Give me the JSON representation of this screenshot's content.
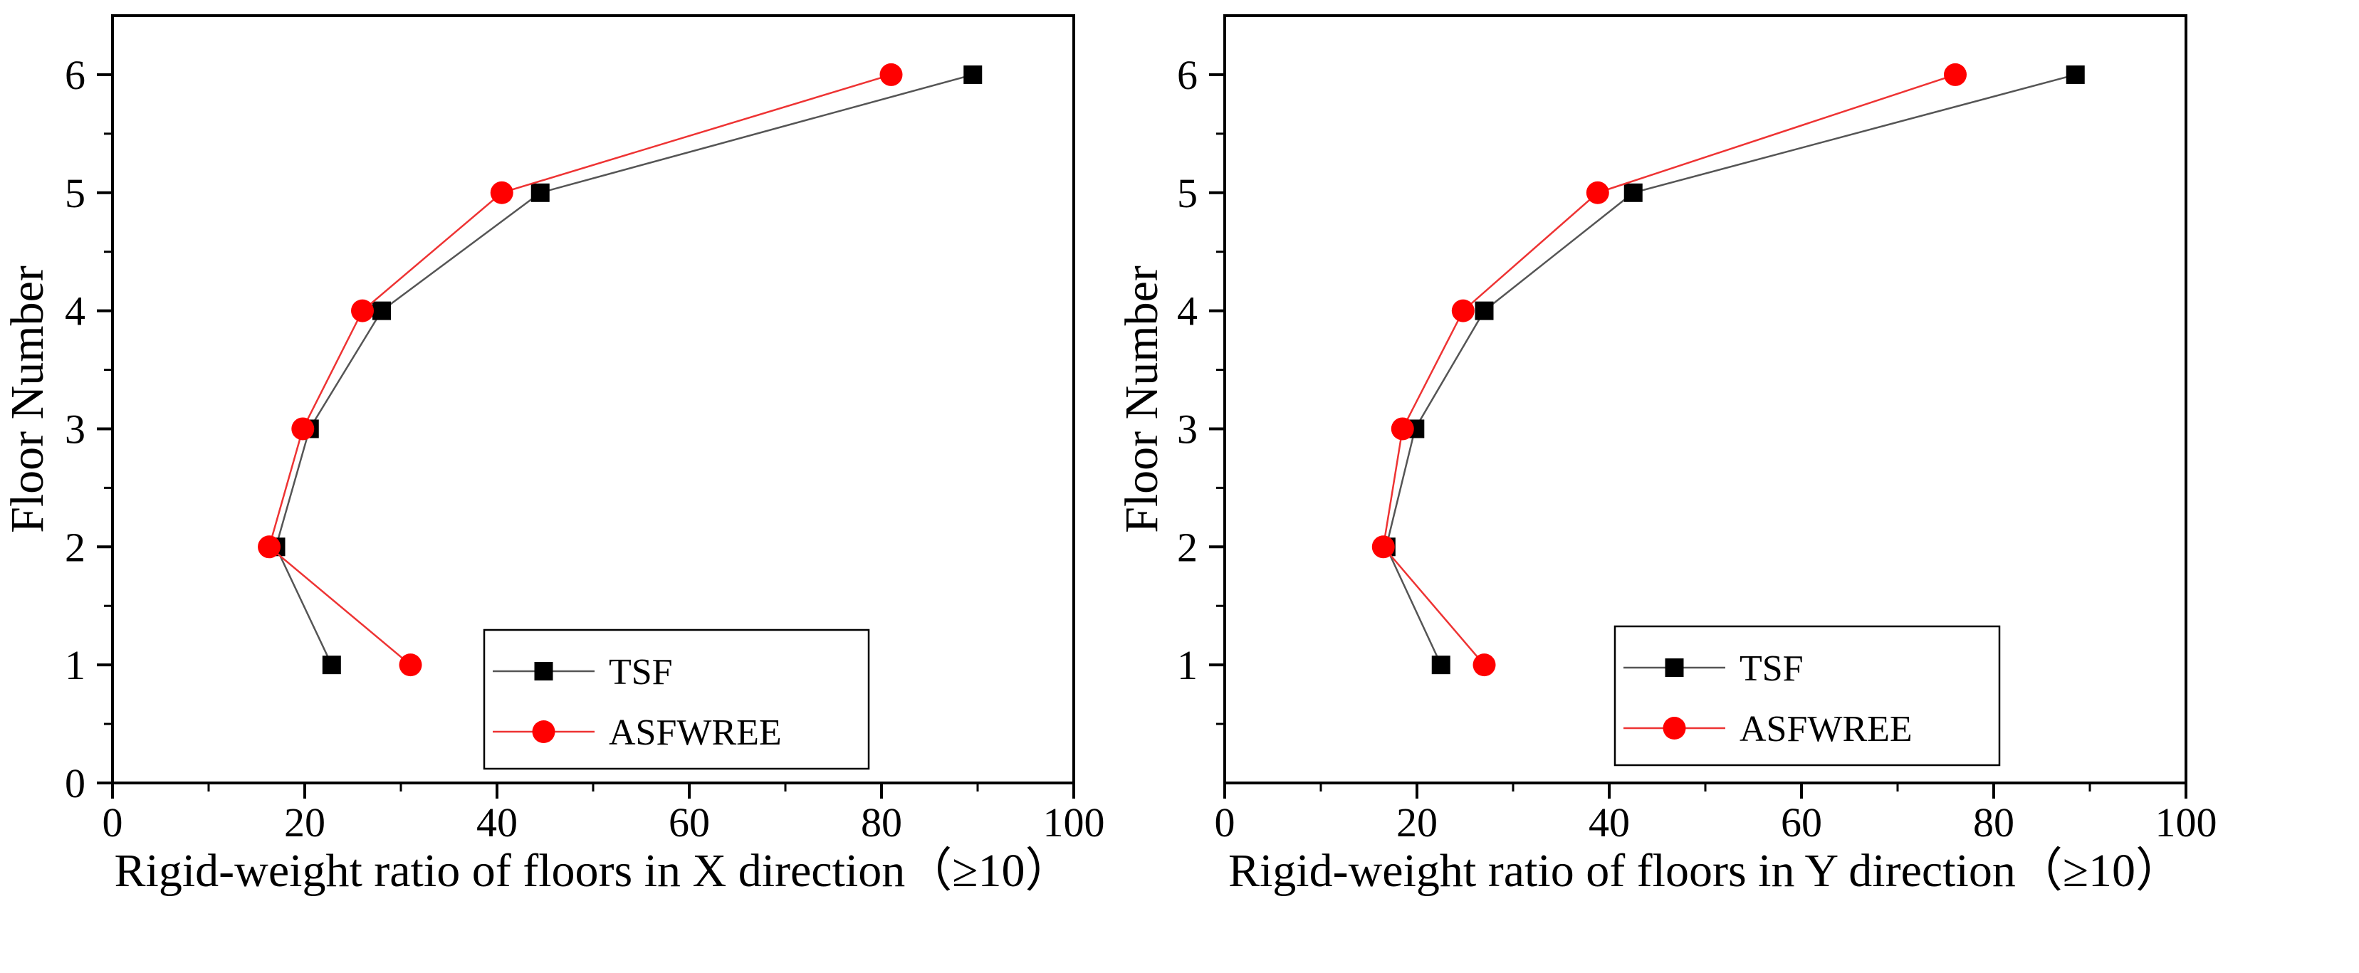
{
  "chart_data": [
    {
      "type": "line",
      "xlabel": "Rigid-weight ratio of floors in X direction（≥10）",
      "ylabel": "Floor Number",
      "xlim": [
        0,
        100
      ],
      "ylim": [
        0,
        6.5
      ],
      "xticks": [
        "0",
        "20",
        "40",
        "60",
        "80",
        "100"
      ],
      "yticks": [
        "0",
        "1",
        "2",
        "3",
        "4",
        "5",
        "6"
      ],
      "grid": false,
      "legend_position": "bottom-right",
      "series": [
        {
          "name": "TSF",
          "color": "#000000",
          "marker": "square",
          "line_color": "#555555",
          "x": [
            22.8,
            17.0,
            20.5,
            28.0,
            44.5,
            89.5
          ],
          "y": [
            1,
            2,
            3,
            4,
            5,
            6
          ]
        },
        {
          "name": "ASFWREE",
          "color": "#ff0000",
          "marker": "circle",
          "line_color": "#ee3333",
          "x": [
            31.0,
            16.3,
            19.8,
            26.0,
            40.5,
            81.0
          ],
          "y": [
            1,
            2,
            3,
            4,
            5,
            6
          ]
        }
      ]
    },
    {
      "type": "line",
      "xlabel": "Rigid-weight ratio of floors in Y direction（≥10）",
      "ylabel": "Floor Number",
      "xlim": [
        0,
        100
      ],
      "ylim": [
        0,
        6.5
      ],
      "xticks": [
        "0",
        "20",
        "40",
        "60",
        "80",
        "100"
      ],
      "yticks": [
        "1",
        "2",
        "3",
        "4",
        "5",
        "6"
      ],
      "grid": false,
      "legend_position": "bottom-right",
      "series": [
        {
          "name": "TSF",
          "color": "#000000",
          "marker": "square",
          "line_color": "#555555",
          "x": [
            22.5,
            16.8,
            19.8,
            27.0,
            42.5,
            88.5
          ],
          "y": [
            1,
            2,
            3,
            4,
            5,
            6
          ]
        },
        {
          "name": "ASFWREE",
          "color": "#ff0000",
          "marker": "circle",
          "line_color": "#ee3333",
          "x": [
            27.0,
            16.5,
            18.5,
            24.8,
            38.8,
            76.0
          ],
          "y": [
            1,
            2,
            3,
            4,
            5,
            6
          ]
        }
      ]
    }
  ]
}
